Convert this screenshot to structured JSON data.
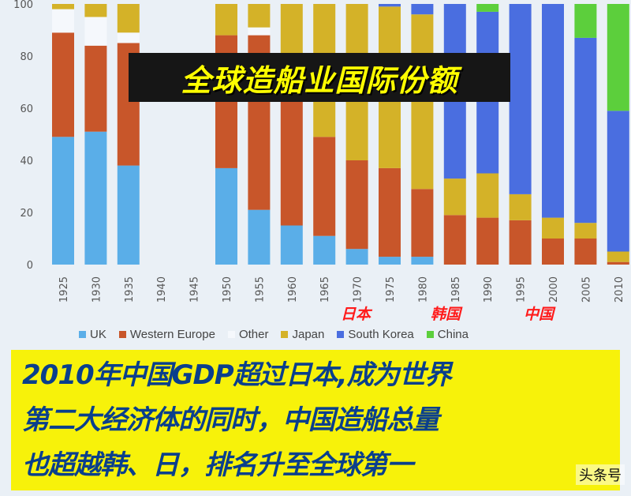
{
  "chart_data": {
    "type": "bar",
    "stacked": true,
    "categories": [
      "1925",
      "1930",
      "1935",
      "1940",
      "1945",
      "1950",
      "1955",
      "1960",
      "1965",
      "1970",
      "1975",
      "1980",
      "1985",
      "1990",
      "1995",
      "2000",
      "2005",
      "2010"
    ],
    "series": [
      {
        "name": "UK",
        "color": "#5aaee8",
        "values": [
          49,
          51,
          38,
          0,
          0,
          37,
          21,
          15,
          11,
          6,
          3,
          3,
          0,
          0,
          0,
          0,
          0,
          0
        ]
      },
      {
        "name": "Western Europe",
        "color": "#c8562a",
        "values": [
          40,
          33,
          47,
          0,
          0,
          51,
          67,
          60,
          38,
          34,
          34,
          26,
          19,
          18,
          17,
          10,
          10,
          1
        ]
      },
      {
        "name": "Other",
        "color": "#f5f8fc",
        "values": [
          9,
          11,
          4,
          0,
          0,
          0,
          3,
          0,
          0,
          0,
          0,
          0,
          0,
          0,
          0,
          0,
          0,
          0
        ]
      },
      {
        "name": "Japan",
        "color": "#d4b228",
        "values": [
          2,
          5,
          11,
          0,
          0,
          12,
          9,
          25,
          51,
          60,
          62,
          67,
          14,
          17,
          10,
          8,
          6,
          4
        ]
      },
      {
        "name": "South Korea",
        "color": "#4a6ee0",
        "values": [
          0,
          0,
          0,
          0,
          0,
          0,
          0,
          0,
          0,
          0,
          1,
          4,
          67,
          62,
          73,
          82,
          71,
          54
        ]
      },
      {
        "name": "China",
        "color": "#5ccf3c",
        "values": [
          0,
          0,
          0,
          0,
          0,
          0,
          0,
          0,
          0,
          0,
          0,
          0,
          0,
          3,
          0,
          0,
          13,
          41
        ]
      }
    ],
    "ylim": [
      0,
      100
    ],
    "yticks": [
      0,
      20,
      40,
      60,
      80,
      100
    ],
    "legend_position": "bottom",
    "title": "全球造船业国际份额"
  },
  "annotations": {
    "japan": "日本",
    "korea": "韩国",
    "china": "中国"
  },
  "caption": {
    "line1": "2010年中国GDP超过日本,成为世界",
    "line2": "第二大经济体的同时，中国造船总量",
    "line3": "也超越韩、日，排名升至全球第一"
  },
  "watermark": "头条号"
}
